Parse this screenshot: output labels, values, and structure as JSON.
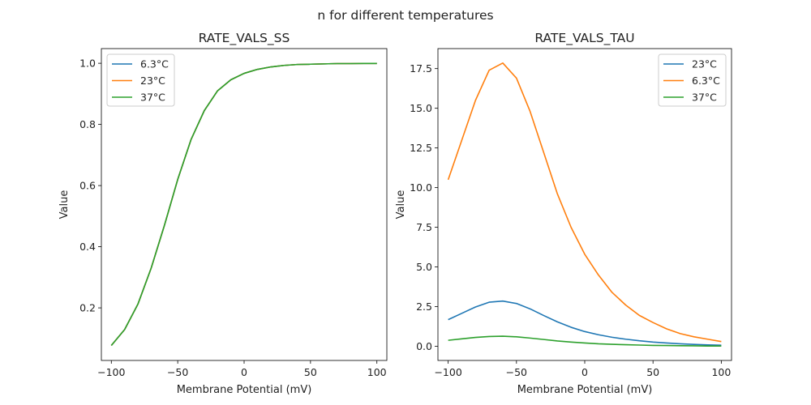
{
  "figure": {
    "suptitle": "n for different temperatures"
  },
  "chart_data": [
    {
      "type": "line",
      "title": "RATE_VALS_SS",
      "xlabel": "Membrane Potential (mV)",
      "ylabel": "Value",
      "xlim": [
        -107.5,
        107.5
      ],
      "ylim": [
        0.028,
        1.048
      ],
      "xticks": [
        -100,
        -50,
        0,
        50,
        100
      ],
      "yticks": [
        0.2,
        0.4,
        0.6,
        0.8,
        1.0
      ],
      "xtick_labels": [
        "−100",
        "−50",
        "0",
        "50",
        "100"
      ],
      "ytick_labels": [
        "0.2",
        "0.4",
        "0.6",
        "0.8",
        "1.0"
      ],
      "legend_position": "upper-left",
      "x": [
        -100,
        -90,
        -80,
        -70,
        -60,
        -50,
        -40,
        -30,
        -20,
        -10,
        0,
        10,
        20,
        30,
        40,
        50,
        60,
        70,
        80,
        90,
        100
      ],
      "series": [
        {
          "name": "6.3°C",
          "color": "#1f77b4",
          "values": [
            0.077,
            0.129,
            0.212,
            0.33,
            0.47,
            0.62,
            0.75,
            0.845,
            0.91,
            0.946,
            0.967,
            0.98,
            0.988,
            0.993,
            0.996,
            0.997,
            0.998,
            0.999,
            0.999,
            0.9995,
            0.9995
          ]
        },
        {
          "name": "23°C",
          "color": "#ff7f0e",
          "values": [
            0.077,
            0.129,
            0.212,
            0.33,
            0.47,
            0.62,
            0.75,
            0.845,
            0.91,
            0.946,
            0.967,
            0.98,
            0.988,
            0.993,
            0.996,
            0.997,
            0.998,
            0.999,
            0.999,
            0.9995,
            0.9995
          ]
        },
        {
          "name": "37°C",
          "color": "#2ca02c",
          "values": [
            0.077,
            0.129,
            0.212,
            0.33,
            0.47,
            0.62,
            0.75,
            0.845,
            0.91,
            0.946,
            0.967,
            0.98,
            0.988,
            0.993,
            0.996,
            0.997,
            0.998,
            0.999,
            0.999,
            0.9995,
            0.9995
          ]
        }
      ]
    },
    {
      "type": "line",
      "title": "RATE_VALS_TAU",
      "xlabel": "Membrane Potential (mV)",
      "ylabel": "Value",
      "xlim": [
        -107.5,
        107.5
      ],
      "ylim": [
        -0.89,
        18.76
      ],
      "xticks": [
        -100,
        -50,
        0,
        50,
        100
      ],
      "yticks": [
        0.0,
        2.5,
        5.0,
        7.5,
        10.0,
        12.5,
        15.0,
        17.5
      ],
      "xtick_labels": [
        "−100",
        "−50",
        "0",
        "50",
        "100"
      ],
      "ytick_labels": [
        "0.0",
        "2.5",
        "5.0",
        "7.5",
        "10.0",
        "12.5",
        "15.0",
        "17.5"
      ],
      "legend_position": "upper-right",
      "x": [
        -100,
        -90,
        -80,
        -70,
        -60,
        -50,
        -40,
        -30,
        -20,
        -10,
        0,
        10,
        20,
        30,
        40,
        50,
        60,
        70,
        80,
        90,
        100
      ],
      "series": [
        {
          "name": "23°C",
          "color": "#1f77b4",
          "values": [
            1.68,
            2.08,
            2.48,
            2.78,
            2.85,
            2.7,
            2.36,
            1.94,
            1.54,
            1.2,
            0.93,
            0.73,
            0.57,
            0.45,
            0.35,
            0.27,
            0.21,
            0.16,
            0.12,
            0.09,
            0.07
          ]
        },
        {
          "name": "6.3°C",
          "color": "#ff7f0e",
          "values": [
            10.5,
            13.0,
            15.5,
            17.4,
            17.85,
            16.9,
            14.8,
            12.2,
            9.6,
            7.5,
            5.8,
            4.5,
            3.4,
            2.6,
            1.95,
            1.5,
            1.1,
            0.8,
            0.6,
            0.45,
            0.3
          ]
        },
        {
          "name": "37°C",
          "color": "#2ca02c",
          "values": [
            0.38,
            0.47,
            0.56,
            0.62,
            0.64,
            0.6,
            0.52,
            0.43,
            0.34,
            0.27,
            0.21,
            0.16,
            0.13,
            0.1,
            0.08,
            0.06,
            0.05,
            0.04,
            0.03,
            0.02,
            0.02
          ]
        }
      ]
    }
  ]
}
